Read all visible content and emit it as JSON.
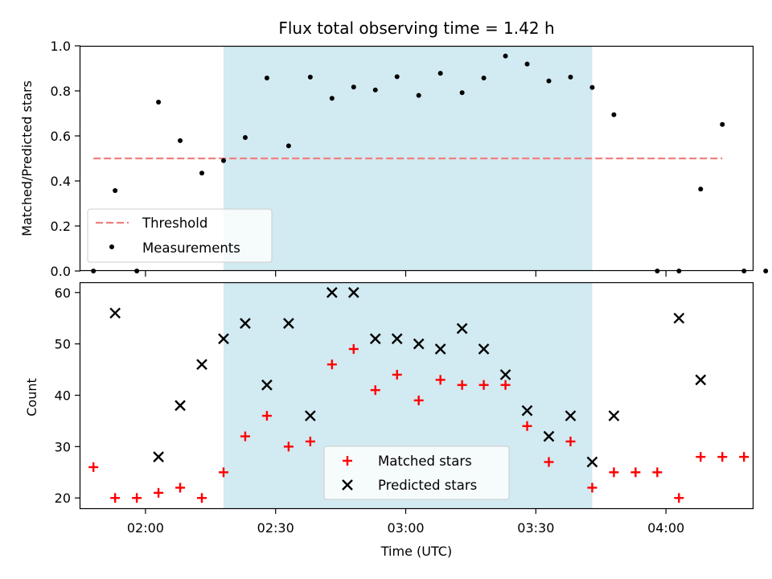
{
  "chart_data": [
    {
      "type": "scatter",
      "title": "Flux total observing time = 1.42 h",
      "ylabel": "Matched/Predicted stars",
      "xlabel": "",
      "xlim": [
        "01:45",
        "04:20"
      ],
      "ylim": [
        0,
        1.0
      ],
      "y_ticks": [
        0.0,
        0.2,
        0.4,
        0.6,
        0.8,
        1.0
      ],
      "y_tick_labels": [
        "0.0",
        "0.2",
        "0.4",
        "0.6",
        "0.8",
        "1.0"
      ],
      "x_ticks": [
        "02:00",
        "02:30",
        "03:00",
        "03:30",
        "04:00"
      ],
      "shaded_region": {
        "start": "02:18",
        "end": "03:43",
        "color": "#add8e6"
      },
      "threshold": {
        "name": "Threshold",
        "y": 0.5,
        "x_start": "01:48",
        "x_end": "04:13",
        "color": "#f08080"
      },
      "series": [
        {
          "name": "Measurements",
          "marker": "dot",
          "color": "#000000",
          "points": [
            [
              "01:48",
              0.0
            ],
            [
              "01:53",
              0.357
            ],
            [
              "01:58",
              0.0
            ],
            [
              "02:03",
              0.75
            ],
            [
              "02:08",
              0.579
            ],
            [
              "02:13",
              0.435
            ],
            [
              "02:18",
              0.49
            ],
            [
              "02:23",
              0.593
            ],
            [
              "02:28",
              0.857
            ],
            [
              "02:33",
              0.556
            ],
            [
              "02:38",
              0.861
            ],
            [
              "02:43",
              0.767
            ],
            [
              "02:48",
              0.817
            ],
            [
              "02:53",
              0.804
            ],
            [
              "02:58",
              0.863
            ],
            [
              "03:03",
              0.78
            ],
            [
              "03:08",
              0.878
            ],
            [
              "03:13",
              0.792
            ],
            [
              "03:18",
              0.857
            ],
            [
              "03:23",
              0.955
            ],
            [
              "03:28",
              0.919
            ],
            [
              "03:33",
              0.844
            ],
            [
              "03:38",
              0.861
            ],
            [
              "03:43",
              0.815
            ],
            [
              "03:48",
              0.694
            ],
            [
              "03:58",
              0.0
            ],
            [
              "04:03",
              0.0
            ],
            [
              "04:08",
              0.364
            ],
            [
              "04:13",
              0.651
            ],
            [
              "04:18",
              0.0
            ],
            [
              "04:23",
              0.0
            ]
          ]
        }
      ],
      "legend": {
        "position": "lower-left",
        "entries": [
          "Threshold",
          "Measurements"
        ]
      }
    },
    {
      "type": "scatter",
      "title": "",
      "ylabel": "Count",
      "xlabel": "Time (UTC)",
      "xlim": [
        "01:45",
        "04:20"
      ],
      "ylim": [
        18,
        62
      ],
      "y_ticks": [
        20,
        30,
        40,
        50,
        60
      ],
      "x_ticks": [
        "02:00",
        "02:30",
        "03:00",
        "03:30",
        "04:00"
      ],
      "shaded_region": {
        "start": "02:18",
        "end": "03:43",
        "color": "#add8e6"
      },
      "series": [
        {
          "name": "Matched stars",
          "marker": "plus",
          "color": "#ff0000",
          "points": [
            [
              "01:48",
              26
            ],
            [
              "01:53",
              20
            ],
            [
              "01:58",
              20
            ],
            [
              "02:03",
              21
            ],
            [
              "02:08",
              22
            ],
            [
              "02:13",
              20
            ],
            [
              "02:18",
              25
            ],
            [
              "02:23",
              32
            ],
            [
              "02:28",
              36
            ],
            [
              "02:33",
              30
            ],
            [
              "02:38",
              31
            ],
            [
              "02:43",
              46
            ],
            [
              "02:48",
              49
            ],
            [
              "02:53",
              41
            ],
            [
              "02:58",
              44
            ],
            [
              "03:03",
              39
            ],
            [
              "03:08",
              43
            ],
            [
              "03:13",
              42
            ],
            [
              "03:18",
              42
            ],
            [
              "03:23",
              42
            ],
            [
              "03:28",
              34
            ],
            [
              "03:33",
              27
            ],
            [
              "03:38",
              31
            ],
            [
              "03:43",
              22
            ],
            [
              "03:48",
              25
            ],
            [
              "03:53",
              25
            ],
            [
              "03:58",
              25
            ],
            [
              "04:03",
              20
            ],
            [
              "04:08",
              28
            ],
            [
              "04:13",
              28
            ],
            [
              "04:18",
              28
            ]
          ]
        },
        {
          "name": "Predicted stars",
          "marker": "x",
          "color": "#000000",
          "points": [
            [
              "01:53",
              56
            ],
            [
              "02:03",
              28
            ],
            [
              "02:08",
              38
            ],
            [
              "02:13",
              46
            ],
            [
              "02:18",
              51
            ],
            [
              "02:23",
              54
            ],
            [
              "02:28",
              42
            ],
            [
              "02:33",
              54
            ],
            [
              "02:38",
              36
            ],
            [
              "02:43",
              60
            ],
            [
              "02:48",
              60
            ],
            [
              "02:53",
              51
            ],
            [
              "02:58",
              51
            ],
            [
              "03:03",
              50
            ],
            [
              "03:08",
              49
            ],
            [
              "03:13",
              53
            ],
            [
              "03:18",
              49
            ],
            [
              "03:23",
              44
            ],
            [
              "03:28",
              37
            ],
            [
              "03:33",
              32
            ],
            [
              "03:38",
              36
            ],
            [
              "03:43",
              27
            ],
            [
              "03:48",
              36
            ],
            [
              "04:03",
              55
            ],
            [
              "04:08",
              43
            ]
          ]
        }
      ],
      "legend": {
        "position": "lower-center",
        "entries": [
          "Matched stars",
          "Predicted stars"
        ]
      }
    }
  ]
}
